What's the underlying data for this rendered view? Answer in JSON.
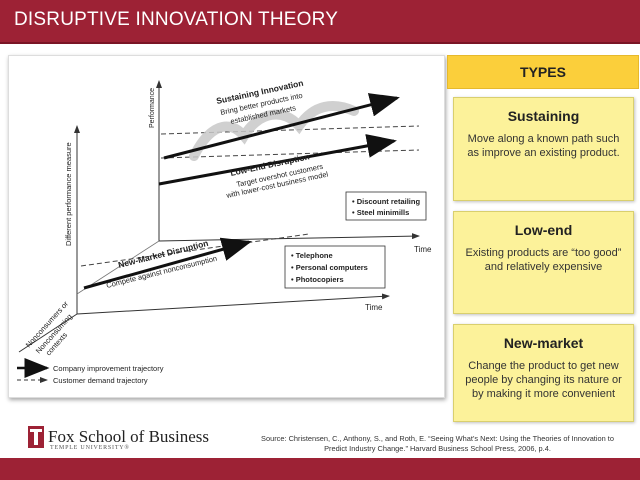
{
  "slide": {
    "title": "DISRUPTIVE INNOVATION THEORY"
  },
  "diagram": {
    "y_axis_label": "Different performance measure",
    "z_axis_label": "Performance",
    "time_label_upper": "Time",
    "time_label_lower": "Time",
    "nonconsumers_label_1": "Nonconsumers or",
    "nonconsumers_label_2": "Nonconsuming",
    "nonconsumers_label_3": "contexts",
    "sustaining_title": "Sustaining Innovation",
    "sustaining_sub_1": "Bring better products into",
    "sustaining_sub_2": "established markets",
    "lowend_title": "Low-End Disruption",
    "lowend_sub_1": "Target overshot customers",
    "lowend_sub_2": "with lower-cost business model",
    "lowend_examples": [
      "Discount retailing",
      "Steel minimills"
    ],
    "newmarket_title": "New-Market Disruption",
    "newmarket_sub": "Compete against nonconsumption",
    "newmarket_examples": [
      "Telephone",
      "Personal computers",
      "Photocopiers"
    ],
    "legend_solid": "Company improvement trajectory",
    "legend_dashed": "Customer demand trajectory"
  },
  "types": {
    "header": "TYPES",
    "items": [
      {
        "title": "Sustaining",
        "description": "Move along a known path such as improve an existing product."
      },
      {
        "title": "Low-end",
        "description": "Existing products are “too good” and relatively expensive"
      },
      {
        "title": "New-market",
        "description": "Change the product to get new people by changing its nature or by making it more convenient"
      }
    ]
  },
  "footer": {
    "logo_name": "Fox School of Business",
    "logo_sub": "TEMPLE UNIVERSITY®",
    "source_line_1": "Source: Christensen, C., Anthony, S., and Roth, E. “Seeing What’s Next: Using the Theories of Innovation to",
    "source_line_2": "Predict Industry Change.” Harvard Business School Press, 2006, p.4."
  },
  "colors": {
    "brand": "#9d2235",
    "types_header": "#fbcf3b",
    "type_box": "#fcf29a"
  }
}
